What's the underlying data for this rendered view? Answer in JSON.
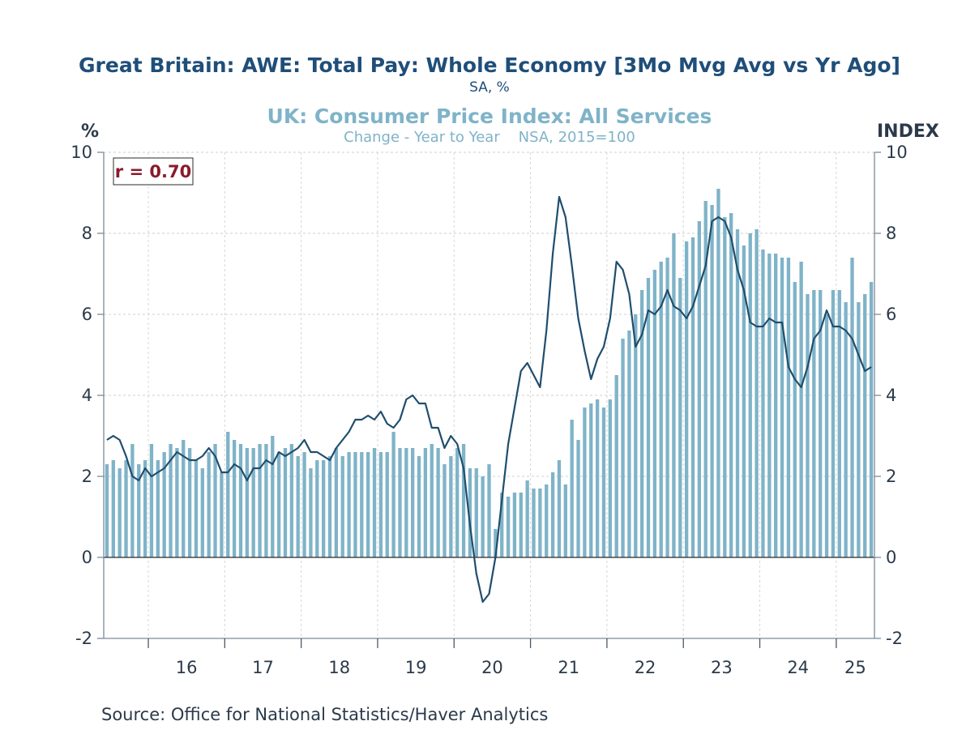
{
  "chart_data": {
    "type": "bar+line",
    "title": "Great Britain: AWE: Total Pay: Whole Economy [3Mo Mvg Avg vs Yr Ago]",
    "title_sub": "SA, %",
    "title2": "UK: Consumer Price Index: All Services",
    "title2_sub": "Change - Year to Year    NSA, 2015=100",
    "left_unit": "%",
    "right_unit": "INDEX",
    "annotation": "r = 0.70",
    "source": "Source:  Office for National Statistics/Haver Analytics",
    "ylim": [
      -2,
      10
    ],
    "y_ticks": [
      -2,
      0,
      2,
      4,
      6,
      8,
      10
    ],
    "y_tick_labels": [
      "-2",
      "0",
      "2",
      "4",
      "6",
      "8",
      "10"
    ],
    "x_tick_labels": [
      "16",
      "17",
      "18",
      "19",
      "20",
      "21",
      "22",
      "23",
      "24",
      "25"
    ],
    "x_start": "2015-06",
    "series": [
      {
        "name": "UK: Consumer Price Index: All Services",
        "kind": "bar",
        "color": "#7fb3c8",
        "values": [
          2.3,
          2.4,
          2.2,
          2.4,
          2.8,
          2.3,
          2.4,
          2.8,
          2.4,
          2.6,
          2.8,
          2.7,
          2.9,
          2.7,
          2.4,
          2.2,
          2.6,
          2.8,
          2.1,
          3.1,
          2.9,
          2.8,
          2.7,
          2.7,
          2.8,
          2.8,
          3.0,
          2.6,
          2.7,
          2.8,
          2.5,
          2.6,
          2.2,
          2.4,
          2.4,
          2.5,
          2.7,
          2.5,
          2.6,
          2.6,
          2.6,
          2.6,
          2.7,
          2.6,
          2.6,
          3.1,
          2.7,
          2.7,
          2.7,
          2.5,
          2.7,
          2.8,
          2.7,
          2.3,
          2.5,
          2.7,
          2.8,
          2.2,
          2.2,
          2.0,
          2.3,
          0.7,
          1.6,
          1.5,
          1.6,
          1.6,
          1.9,
          1.7,
          1.7,
          1.8,
          2.1,
          2.4,
          1.8,
          3.4,
          2.9,
          3.7,
          3.8,
          3.9,
          3.7,
          3.9,
          4.5,
          5.4,
          5.6,
          6.0,
          6.6,
          6.9,
          7.1,
          7.3,
          7.4,
          8.0,
          6.9,
          7.8,
          7.9,
          8.3,
          8.8,
          8.7,
          9.1,
          8.4,
          8.5,
          8.1,
          7.7,
          8.0,
          8.1,
          7.6,
          7.5,
          7.5,
          7.4,
          7.4,
          6.8,
          7.3,
          6.5,
          6.6,
          6.6,
          6.0,
          6.6,
          6.6,
          6.3,
          7.4,
          6.3,
          6.5,
          6.8
        ]
      },
      {
        "name": "Great Britain: AWE: Total Pay: Whole Economy [3Mo Mvg Avg vs Yr Ago]",
        "kind": "line",
        "color": "#1f4e6e",
        "values": [
          2.9,
          3.0,
          2.9,
          2.5,
          2.0,
          1.9,
          2.2,
          2.0,
          2.1,
          2.2,
          2.4,
          2.6,
          2.5,
          2.4,
          2.4,
          2.5,
          2.7,
          2.5,
          2.1,
          2.1,
          2.3,
          2.2,
          1.9,
          2.2,
          2.2,
          2.4,
          2.3,
          2.6,
          2.5,
          2.6,
          2.7,
          2.9,
          2.6,
          2.6,
          2.5,
          2.4,
          2.7,
          2.9,
          3.1,
          3.4,
          3.4,
          3.5,
          3.4,
          3.6,
          3.3,
          3.2,
          3.4,
          3.9,
          4.0,
          3.8,
          3.8,
          3.2,
          3.2,
          2.7,
          3.0,
          2.8,
          2.2,
          0.8,
          -0.4,
          -1.1,
          -0.9,
          0.0,
          1.4,
          2.8,
          3.7,
          4.6,
          4.8,
          4.5,
          4.2,
          5.6,
          7.5,
          8.9,
          8.4,
          7.2,
          5.9,
          5.1,
          4.4,
          4.9,
          5.2,
          5.9,
          7.3,
          7.1,
          6.5,
          5.2,
          5.5,
          6.1,
          6.0,
          6.2,
          6.6,
          6.2,
          6.1,
          5.9,
          6.2,
          6.7,
          7.2,
          8.3,
          8.4,
          8.3,
          7.9,
          7.1,
          6.6,
          5.8,
          5.7,
          5.7,
          5.9,
          5.8,
          5.8,
          4.7,
          4.4,
          4.2,
          4.7,
          5.4,
          5.6,
          6.1,
          5.7,
          5.7,
          5.6,
          5.4,
          5.0,
          4.6,
          4.7
        ]
      }
    ],
    "grid": true,
    "legend": "none"
  }
}
